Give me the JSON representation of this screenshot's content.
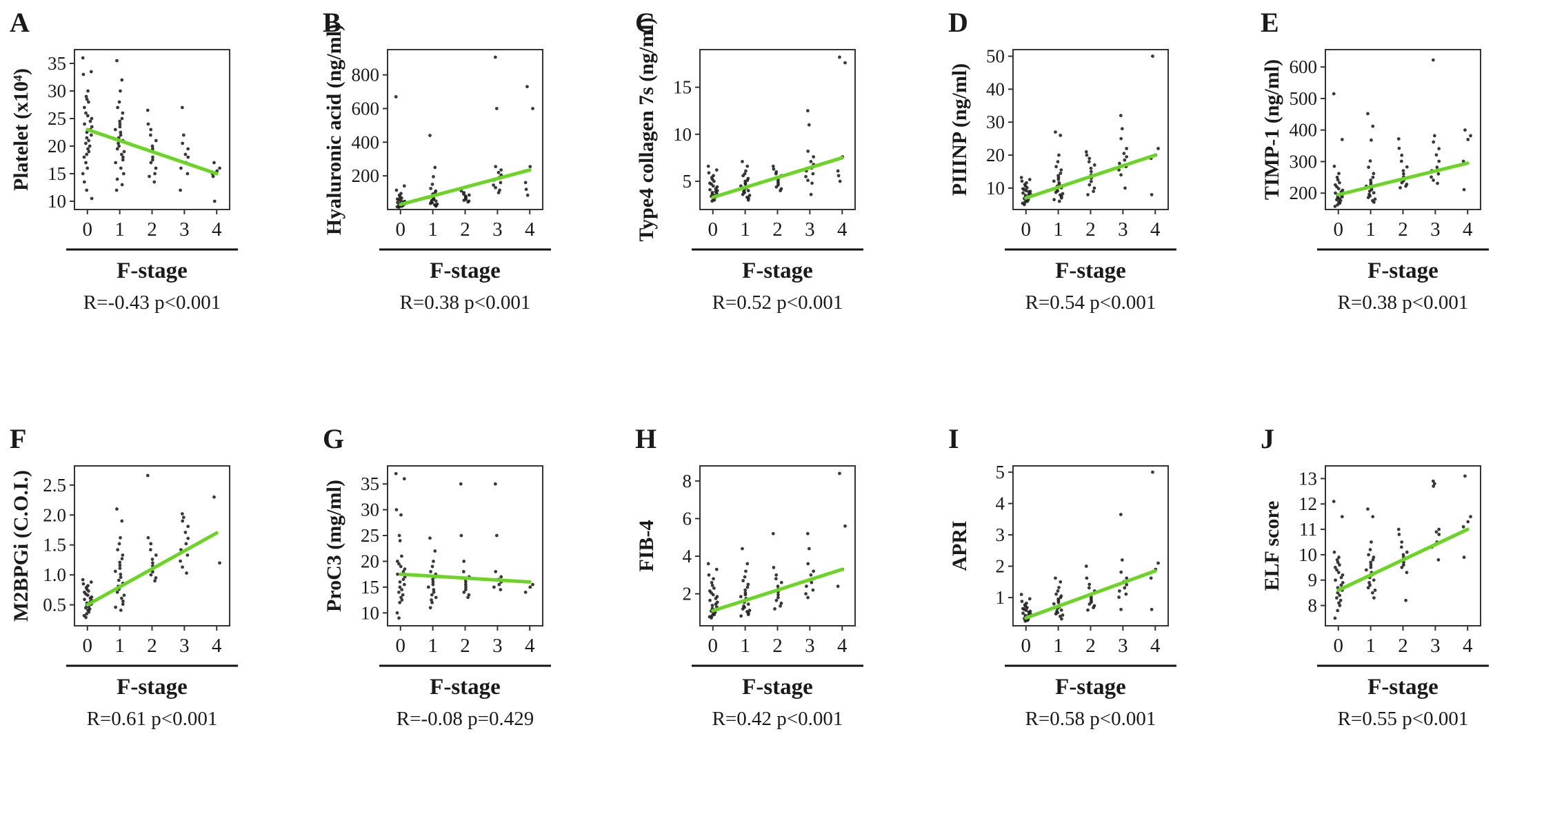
{
  "figure": {
    "xlabel": "F-stage",
    "x_categories": [
      "0",
      "1",
      "2",
      "3",
      "4"
    ],
    "line_color": "#6CD427",
    "point_color": "#1f1f1f",
    "axis_color": "#333333"
  },
  "chart_data": {
    "type": "scatter",
    "xlabel": "F-stage",
    "x_values": [
      0,
      1,
      2,
      3,
      4
    ],
    "panels": [
      {
        "letter": "A",
        "ylabel": "Platelet (x10⁴)",
        "ylim": [
          8.5,
          37.5
        ],
        "ytick_values": [
          10,
          15,
          20,
          25,
          30,
          35
        ],
        "ytick_labels": [
          "10",
          "15",
          "20",
          "25",
          "30",
          "35"
        ],
        "regression": [
          23.0,
          15.0
        ],
        "stat": "R=-0.43 p<0.001",
        "points": [
          [
            36,
            33.5,
            33,
            30,
            29,
            28.5,
            28,
            27,
            26,
            25.5,
            25,
            24.5,
            24,
            23.5,
            23,
            22.5,
            22,
            21.5,
            21,
            20.5,
            20,
            19.5,
            19,
            18.5,
            18,
            17,
            16,
            15,
            13.5,
            12,
            10.5
          ],
          [
            35.5,
            32,
            30,
            28,
            27,
            26,
            25,
            24.5,
            24,
            23.5,
            23,
            22.5,
            22,
            21.5,
            21,
            20.5,
            20,
            19.5,
            19,
            18.5,
            18,
            17.5,
            17,
            16,
            15,
            14,
            13,
            12
          ],
          [
            26.5,
            24,
            23,
            22,
            21,
            20,
            19.5,
            19,
            18,
            17.5,
            17,
            16,
            15,
            14.5,
            13.5
          ],
          [
            27,
            22,
            20.5,
            19.5,
            18.5,
            18,
            17,
            16,
            15,
            12
          ],
          [
            17,
            16,
            15.5,
            15,
            14.5,
            10
          ]
        ]
      },
      {
        "letter": "B",
        "ylabel": "Hyaluronic acid (ng/ml)",
        "ylim": [
          0,
          950
        ],
        "ytick_values": [
          200,
          400,
          600,
          800
        ],
        "ytick_labels": [
          "200",
          "400",
          "600",
          "800"
        ],
        "regression": [
          30,
          235
        ],
        "stat": "R=0.38 p<0.001",
        "points": [
          [
            670,
            140,
            115,
            95,
            85,
            75,
            68,
            62,
            58,
            52,
            48,
            45,
            42,
            40,
            38,
            35,
            32,
            30,
            28,
            26,
            24,
            22,
            20,
            18,
            16,
            14
          ],
          [
            440,
            250,
            195,
            150,
            125,
            110,
            100,
            92,
            85,
            78,
            72,
            66,
            60,
            55,
            50,
            45,
            40,
            36,
            32,
            28,
            24,
            20
          ],
          [
            125,
            110,
            100,
            92,
            86,
            80,
            75,
            70,
            65,
            60,
            55,
            50,
            45
          ],
          [
            905,
            600,
            255,
            235,
            220,
            205,
            190,
            175,
            160,
            145,
            130,
            115,
            100
          ],
          [
            730,
            600,
            255,
            160,
            120,
            85
          ]
        ]
      },
      {
        "letter": "C",
        "ylabel": "Type4 collagen 7s (ng/ml)",
        "ylim": [
          2,
          19
        ],
        "ytick_values": [
          5,
          10,
          15
        ],
        "ytick_labels": [
          "5",
          "10",
          "15"
        ],
        "regression": [
          3.3,
          7.5
        ],
        "stat": "R=0.52 p<0.001",
        "points": [
          [
            6.6,
            6.2,
            5.9,
            5.6,
            5.4,
            5.2,
            5.0,
            4.8,
            4.7,
            4.5,
            4.4,
            4.2,
            4.1,
            4.0,
            3.9,
            3.8,
            3.7,
            3.6,
            3.5,
            3.4,
            3.3,
            3.1,
            3.0,
            2.9
          ],
          [
            7.1,
            6.6,
            6.1,
            5.8,
            5.6,
            5.3,
            5.1,
            5.0,
            4.8,
            4.7,
            4.5,
            4.4,
            4.3,
            4.1,
            4.0,
            3.9,
            3.8,
            3.6,
            3.5,
            3.3,
            3.2,
            3.0
          ],
          [
            6.6,
            6.3,
            6.0,
            5.8,
            5.6,
            5.4,
            5.2,
            5.0,
            4.8,
            4.6,
            4.4,
            4.2,
            4.0
          ],
          [
            12.5,
            11.0,
            8.2,
            7.6,
            7.1,
            6.8,
            6.4,
            6.1,
            5.8,
            5.5,
            5.1,
            4.8,
            3.6
          ],
          [
            18.2,
            17.6,
            7.6,
            6.1,
            5.6,
            5.0
          ]
        ]
      },
      {
        "letter": "D",
        "ylabel": "PIIINP (ng/ml)",
        "ylim": [
          3.5,
          52
        ],
        "ytick_values": [
          10,
          20,
          30,
          40,
          50
        ],
        "ytick_labels": [
          "10",
          "20",
          "30",
          "40",
          "50"
        ],
        "regression": [
          7.0,
          20.0
        ],
        "stat": "R=0.54 p<0.001",
        "points": [
          [
            13.2,
            12.6,
            12.1,
            11.6,
            11.1,
            10.6,
            10.1,
            9.8,
            9.5,
            9.2,
            9.0,
            8.8,
            8.5,
            8.2,
            8.0,
            7.8,
            7.5,
            7.2,
            7.0,
            6.8,
            6.5,
            6.2,
            6.0,
            5.8,
            5.4,
            5.0
          ],
          [
            27,
            26,
            20,
            18,
            16.5,
            15.5,
            14.5,
            13.8,
            13.2,
            12.6,
            12.1,
            11.6,
            11.1,
            10.6,
            10.1,
            9.6,
            9.1,
            8.7,
            8.3,
            7.9,
            7.4,
            7.0,
            6.5,
            6.0
          ],
          [
            21,
            20,
            19,
            18,
            17,
            16,
            15,
            14,
            13,
            12,
            11,
            10,
            9,
            8
          ],
          [
            32,
            28,
            25,
            22,
            20.5,
            19.5,
            18.5,
            17.5,
            16.5,
            15.5,
            14,
            10
          ],
          [
            50,
            22,
            20,
            19,
            8
          ]
        ]
      },
      {
        "letter": "E",
        "ylabel": "TIMP-1 (ng/ml)",
        "ylim": [
          148,
          655
        ],
        "ytick_values": [
          200,
          300,
          400,
          500,
          600
        ],
        "ytick_labels": [
          "200",
          "300",
          "400",
          "500",
          "600"
        ],
        "regression": [
          195,
          295
        ],
        "stat": "R=0.38 p<0.001",
        "points": [
          [
            515,
            370,
            285,
            262,
            250,
            242,
            233,
            226,
            220,
            214,
            209,
            204,
            200,
            197,
            194,
            191,
            188,
            185,
            182,
            179,
            176,
            172,
            168,
            163,
            158
          ],
          [
            452,
            412,
            368,
            302,
            282,
            262,
            250,
            241,
            234,
            228,
            222,
            216,
            211,
            206,
            201,
            196,
            191,
            186,
            181,
            176,
            171
          ],
          [
            372,
            342,
            320,
            301,
            283,
            271,
            261,
            251,
            245,
            239,
            233,
            228,
            222,
            217
          ],
          [
            622,
            382,
            362,
            341,
            321,
            301,
            282,
            271,
            261,
            251,
            241,
            231
          ],
          [
            400,
            382,
            370,
            301,
            211
          ]
        ]
      },
      {
        "letter": "F",
        "ylabel": "M2BPGi (C.O.I.)",
        "ylim": [
          0.15,
          2.82
        ],
        "ytick_values": [
          0.5,
          1.0,
          1.5,
          2.0,
          2.5
        ],
        "ytick_labels": [
          "0.5",
          "1.0",
          "1.5",
          "2.0",
          "2.5"
        ],
        "regression": [
          0.5,
          1.7
        ],
        "stat": "R=0.61 p<0.001",
        "points": [
          [
            0.92,
            0.88,
            0.85,
            0.82,
            0.79,
            0.76,
            0.73,
            0.71,
            0.68,
            0.66,
            0.63,
            0.61,
            0.59,
            0.57,
            0.55,
            0.53,
            0.51,
            0.49,
            0.47,
            0.45,
            0.43,
            0.41,
            0.38,
            0.35,
            0.32,
            0.29
          ],
          [
            2.1,
            1.9,
            1.62,
            1.52,
            1.42,
            1.33,
            1.27,
            1.21,
            1.16,
            1.11,
            1.06,
            1.01,
            0.96,
            0.91,
            0.86,
            0.81,
            0.76,
            0.71,
            0.66,
            0.61,
            0.56,
            0.51,
            0.46,
            0.41
          ],
          [
            2.66,
            1.62,
            1.52,
            1.42,
            1.33,
            1.26,
            1.2,
            1.15,
            1.1,
            1.05,
            1.0,
            0.95,
            0.9
          ],
          [
            2.02,
            1.96,
            1.9,
            1.81,
            1.71,
            1.61,
            1.52,
            1.42,
            1.33,
            1.23,
            1.13,
            1.03
          ],
          [
            2.3,
            1.2
          ]
        ]
      },
      {
        "letter": "G",
        "ylabel": "ProC3 (mg/ml)",
        "ylim": [
          7.5,
          38.5
        ],
        "ytick_values": [
          10,
          15,
          20,
          25,
          30,
          35
        ],
        "ytick_labels": [
          "10",
          "15",
          "20",
          "25",
          "30",
          "35"
        ],
        "regression": [
          17.5,
          16.0
        ],
        "stat": "R=-0.08 p=0.429",
        "points": [
          [
            37,
            36,
            30,
            29,
            25,
            24,
            21,
            20,
            19.5,
            19,
            18.5,
            18,
            17.5,
            17,
            16.5,
            16,
            15.5,
            15,
            14.5,
            14,
            13.5,
            13,
            12.5,
            12,
            10,
            9
          ],
          [
            24.5,
            22,
            20,
            19,
            18,
            17.5,
            17,
            16.5,
            16,
            15.5,
            15,
            14.5,
            14,
            13.5,
            13,
            12.5,
            12,
            11
          ],
          [
            35,
            25,
            20,
            18,
            17,
            16.5,
            16,
            15.5,
            15,
            14.5,
            14,
            13.5,
            13
          ],
          [
            35,
            25,
            18,
            17,
            16.5,
            16,
            15.5,
            15,
            14.5
          ],
          [
            16,
            15.5,
            15,
            14
          ]
        ]
      },
      {
        "letter": "H",
        "ylabel": "FIB-4",
        "ylim": [
          0.3,
          8.8
        ],
        "ytick_values": [
          2,
          4,
          6,
          8
        ],
        "ytick_labels": [
          "2",
          "4",
          "6",
          "8"
        ],
        "regression": [
          1.1,
          3.3
        ],
        "stat": "R=0.42 p<0.001",
        "points": [
          [
            3.6,
            3.3,
            3.0,
            2.8,
            2.6,
            2.45,
            2.3,
            2.15,
            2.05,
            1.95,
            1.85,
            1.75,
            1.65,
            1.55,
            1.45,
            1.38,
            1.3,
            1.22,
            1.15,
            1.08,
            1.02,
            0.96,
            0.9,
            0.84,
            0.78,
            0.72
          ],
          [
            4.4,
            3.6,
            3.2,
            2.9,
            2.7,
            2.5,
            2.35,
            2.2,
            2.05,
            1.95,
            1.85,
            1.75,
            1.65,
            1.55,
            1.45,
            1.35,
            1.28,
            1.2,
            1.12,
            1.05,
            0.98,
            0.9,
            0.82
          ],
          [
            5.2,
            3.4,
            3.0,
            2.8,
            2.6,
            2.4,
            2.25,
            2.1,
            1.95,
            1.8,
            1.65,
            1.5,
            1.35,
            1.2
          ],
          [
            5.2,
            4.4,
            3.6,
            3.2,
            3.0,
            2.8,
            2.6,
            2.4,
            2.2,
            2.0,
            1.8
          ],
          [
            8.4,
            5.6,
            3.3,
            2.4
          ]
        ]
      },
      {
        "letter": "I",
        "ylabel": "APRI",
        "ylim": [
          0.1,
          5.2
        ],
        "ytick_values": [
          1,
          2,
          3,
          4,
          5
        ],
        "ytick_labels": [
          "1",
          "2",
          "3",
          "4",
          "5"
        ],
        "regression": [
          0.35,
          1.85
        ],
        "stat": "R=0.58 p<0.001",
        "points": [
          [
            1.1,
            0.96,
            0.88,
            0.82,
            0.77,
            0.72,
            0.68,
            0.65,
            0.62,
            0.59,
            0.56,
            0.53,
            0.5,
            0.48,
            0.45,
            0.43,
            0.4,
            0.38,
            0.36,
            0.33,
            0.31,
            0.29,
            0.27,
            0.25
          ],
          [
            1.62,
            1.5,
            1.32,
            1.21,
            1.11,
            1.05,
            1.0,
            0.95,
            0.9,
            0.85,
            0.8,
            0.75,
            0.7,
            0.65,
            0.6,
            0.56,
            0.52,
            0.48,
            0.44,
            0.4,
            0.32
          ],
          [
            2.0,
            1.62,
            1.42,
            1.31,
            1.21,
            1.11,
            1.02,
            0.96,
            0.9,
            0.85,
            0.79,
            0.74,
            0.68,
            0.6
          ],
          [
            3.65,
            2.2,
            1.81,
            1.62,
            1.51,
            1.41,
            1.31,
            1.21,
            1.11,
            1.01,
            0.62
          ],
          [
            5.0,
            2.1,
            1.9,
            1.62,
            0.62
          ]
        ]
      },
      {
        "letter": "J",
        "ylabel": "ELF score",
        "ylim": [
          7.2,
          13.5
        ],
        "ytick_values": [
          8,
          9,
          10,
          11,
          12,
          13
        ],
        "ytick_labels": [
          "8",
          "9",
          "10",
          "11",
          "12",
          "13"
        ],
        "regression": [
          8.6,
          11.0
        ],
        "stat": "R=0.55 p<0.001",
        "points": [
          [
            12.1,
            11.5,
            10.1,
            9.9,
            9.8,
            9.7,
            9.6,
            9.5,
            9.4,
            9.3,
            9.2,
            9.1,
            9.0,
            8.9,
            8.8,
            8.7,
            8.6,
            8.5,
            8.4,
            8.3,
            8.2,
            8.1,
            8.0,
            7.8,
            7.5
          ],
          [
            11.8,
            11.5,
            10.5,
            10.2,
            10.0,
            9.9,
            9.8,
            9.7,
            9.6,
            9.5,
            9.4,
            9.3,
            9.2,
            9.1,
            9.0,
            8.9,
            8.8,
            8.7,
            8.6,
            8.5,
            8.3
          ],
          [
            11.0,
            10.8,
            10.5,
            10.3,
            10.1,
            10.0,
            9.9,
            9.8,
            9.7,
            9.6,
            9.5,
            9.3,
            8.2
          ],
          [
            12.9,
            12.8,
            12.7,
            11.0,
            10.9,
            10.8,
            10.5,
            10.3,
            9.8
          ],
          [
            13.1,
            11.5,
            11.3,
            11.1,
            9.9
          ]
        ]
      }
    ]
  }
}
